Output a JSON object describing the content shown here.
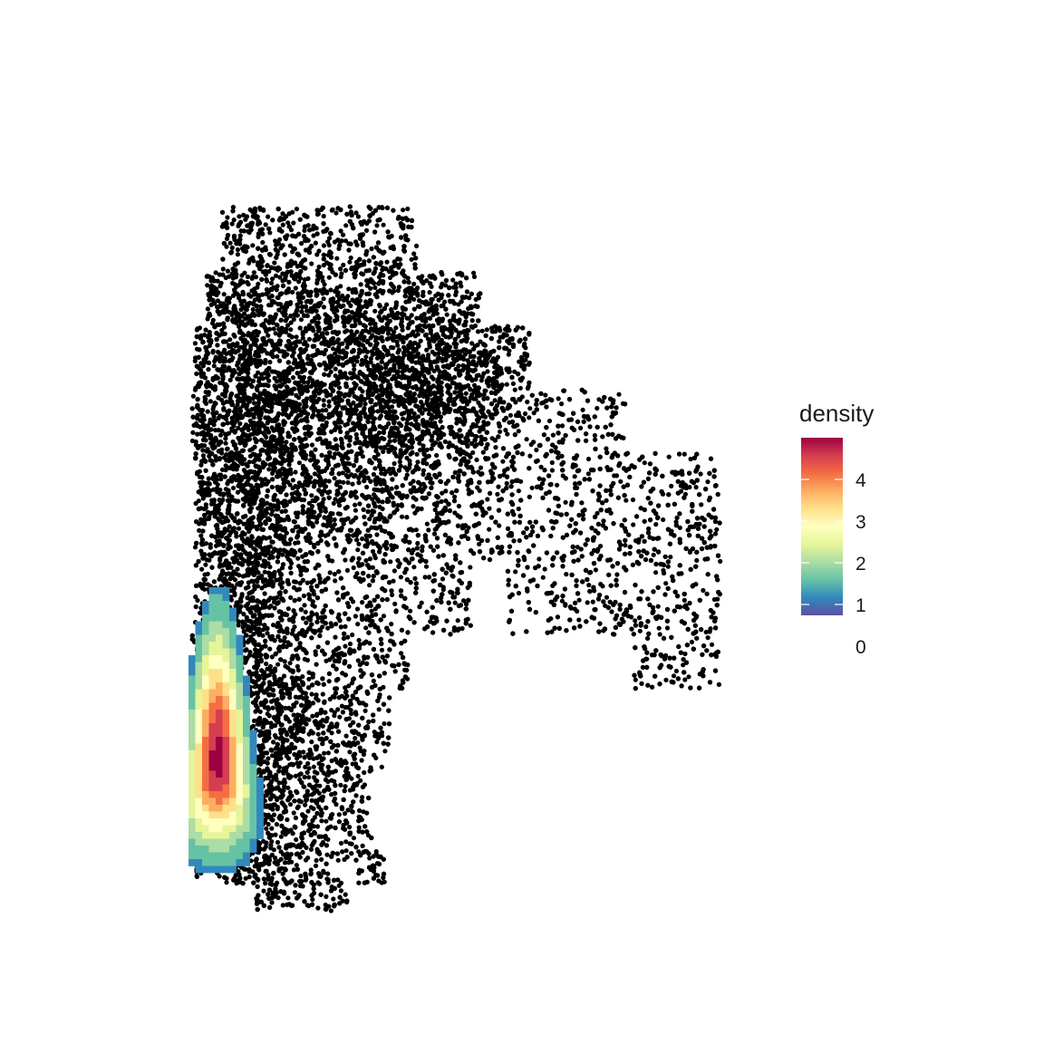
{
  "chart_data": {
    "type": "heatmap",
    "title": "",
    "xlabel": "",
    "ylabel": "",
    "axes_visible": false,
    "grid": false,
    "background_points": {
      "color": "#000000",
      "description_shape": "dense black scatter of cells forming an inverted-L / flag shape"
    },
    "density_overlay": {
      "colormap": "Spectral (reversed)",
      "peak": 5
    },
    "legend": {
      "title": "density",
      "placement": "right",
      "ticks": [
        0,
        1,
        2,
        3,
        4
      ],
      "tick_labels": [
        "0",
        "1",
        "2",
        "3",
        "4"
      ],
      "range": [
        0,
        5
      ],
      "colors": [
        "#5E4FA2",
        "#3288BD",
        "#66C2A5",
        "#ABDDA4",
        "#E6F598",
        "#FFFFBF",
        "#FEE08B",
        "#FDAE61",
        "#F46D43",
        "#D53E4F",
        "#9E0142"
      ]
    }
  }
}
